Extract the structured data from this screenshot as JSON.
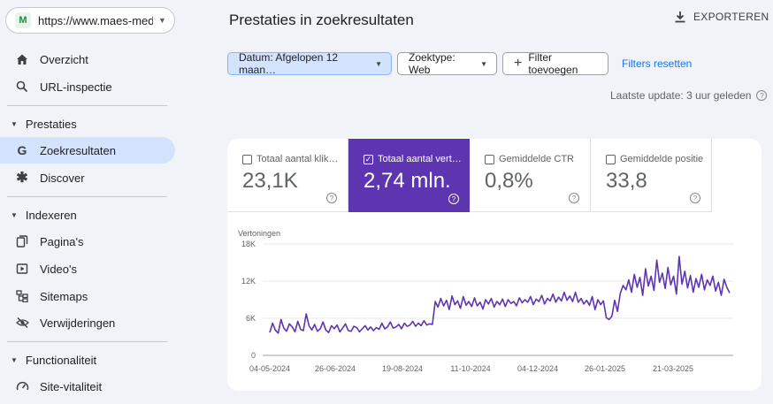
{
  "property": {
    "url": "https://www.maes-med…",
    "logo": "M"
  },
  "sidebar": {
    "overview": "Overzicht",
    "url_inspection": "URL-inspectie",
    "sections": {
      "performance": "Prestaties",
      "indexing": "Indexeren",
      "features": "Functionaliteit"
    },
    "search_results": "Zoekresultaten",
    "discover": "Discover",
    "pages": "Pagina's",
    "videos": "Video's",
    "sitemaps": "Sitemaps",
    "removals": "Verwijderingen",
    "core_web_vitals": "Site-vitaliteit"
  },
  "header": {
    "title": "Prestaties in zoekresultaten",
    "export": "EXPORTEREN"
  },
  "filters": {
    "date": "Datum: Afgelopen 12 maan…",
    "search_type": "Zoektype: Web",
    "add_filter": "Filter toevoegen",
    "reset": "Filters resetten"
  },
  "last_update": "Laatste update: 3 uur geleden",
  "metrics": [
    {
      "label": "Totaal aantal klik…",
      "value": "23,1K",
      "selected": false
    },
    {
      "label": "Totaal aantal vert…",
      "value": "2,74 mln.",
      "selected": true
    },
    {
      "label": "Gemiddelde CTR",
      "value": "0,8%",
      "selected": false
    },
    {
      "label": "Gemiddelde positie",
      "value": "33,8",
      "selected": false
    }
  ],
  "colors": {
    "accent": "#5e35b1",
    "link": "#1a73e8",
    "active_nav": "#d3e3fd"
  },
  "chart_data": {
    "type": "line",
    "ylabel": "Vertoningen",
    "y_ticks": [
      "18K",
      "12K",
      "6K",
      "0"
    ],
    "y_tick_values": [
      18000,
      12000,
      6000,
      0
    ],
    "ylim": [
      0,
      18000
    ],
    "x_ticks": [
      "04-05-2024",
      "26-06-2024",
      "19-08-2024",
      "11-10-2024",
      "04-12-2024",
      "26-01-2025",
      "21-03-2025"
    ],
    "grid": true,
    "series": [
      {
        "values": [
          3700,
          5200,
          4100,
          3600,
          5800,
          4400,
          3900,
          5100,
          4600,
          3800,
          5500,
          4200,
          4000,
          6700,
          4800,
          4100,
          5000,
          3900,
          4300,
          5400,
          4100,
          3700,
          4800,
          4300,
          4900,
          3800,
          4400,
          5100,
          4000,
          3900,
          4700,
          4500,
          3800,
          4300,
          4800,
          4100,
          4600,
          4000,
          4500,
          4200,
          5200,
          4300,
          4600,
          5400,
          4400,
          4600,
          5000,
          4300,
          5200,
          4700,
          4900,
          5500,
          4700,
          5200,
          4800,
          5600,
          4900,
          5100,
          5000,
          8700,
          7800,
          9200,
          8000,
          8900,
          7400,
          9600,
          8200,
          8800,
          7600,
          9500,
          8100,
          8700,
          7900,
          9300,
          8000,
          8600,
          7500,
          9000,
          8300,
          9200,
          7800,
          8700,
          8200,
          9100,
          7900,
          9000,
          8400,
          8700,
          8000,
          9300,
          8500,
          9000,
          8600,
          9500,
          8200,
          9100,
          8700,
          9700,
          8300,
          9200,
          8800,
          9900,
          8600,
          9400,
          8800,
          10200,
          8900,
          9600,
          8700,
          10200,
          8600,
          9200,
          8300,
          8900,
          8100,
          9500,
          7400,
          9000,
          8200,
          8800,
          6100,
          5800,
          6300,
          8900,
          7100,
          10000,
          11300,
          10600,
          12200,
          10200,
          13100,
          11000,
          12600,
          9700,
          14000,
          11200,
          12800,
          10500,
          15400,
          11800,
          13300,
          10800,
          14200,
          11400,
          12800,
          9900,
          16000,
          11500,
          13600,
          10900,
          12900,
          10200,
          12400,
          11000,
          13100,
          10600,
          12200,
          11300,
          12800,
          10400,
          11800,
          9700,
          12300,
          11000,
          10100
        ]
      }
    ]
  }
}
